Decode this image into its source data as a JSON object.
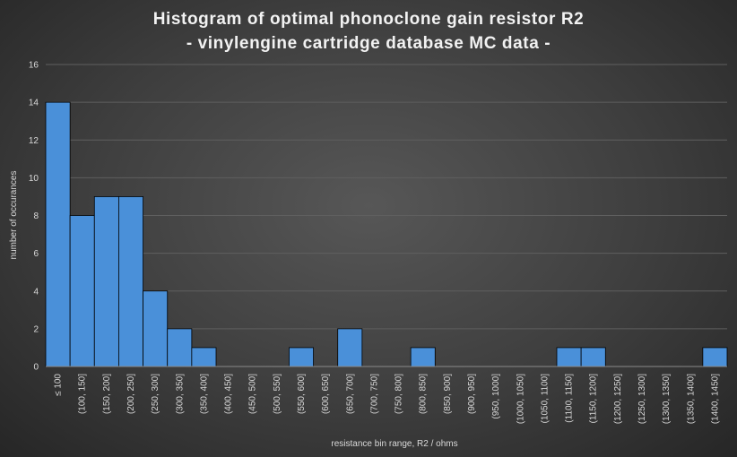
{
  "chart_data": {
    "type": "bar",
    "title": "Histogram of optimal phonoclone gain resistor R2",
    "subtitle": "- vinylengine cartridge database MC data -",
    "xlabel": "resistance bin range, R2 / ohms",
    "ylabel": "number of occurances",
    "ylim": [
      0,
      16
    ],
    "yticks": [
      0,
      2,
      4,
      6,
      8,
      10,
      12,
      14,
      16
    ],
    "grid": true,
    "bar_color": "#4a90d9",
    "categories": [
      "≤ 100",
      "(100, 150]",
      "(150, 200]",
      "(200, 250]",
      "(250, 300]",
      "(300, 350]",
      "(350, 400]",
      "(400, 450]",
      "(450, 500]",
      "(500, 550]",
      "(550, 600]",
      "(600, 650]",
      "(650, 700]",
      "(700, 750]",
      "(750, 800]",
      "(800, 850]",
      "(850, 900]",
      "(900, 950]",
      "(950, 1000]",
      "(1000, 1050]",
      "(1050, 1100]",
      "(1100, 1150]",
      "(1150, 1200]",
      "(1200, 1250]",
      "(1250, 1300]",
      "(1300, 1350]",
      "(1350, 1400]",
      "(1400, 1450]"
    ],
    "values": [
      14,
      8,
      9,
      9,
      4,
      2,
      1,
      0,
      0,
      0,
      1,
      0,
      2,
      0,
      0,
      1,
      0,
      0,
      0,
      0,
      0,
      1,
      1,
      0,
      0,
      0,
      0,
      1
    ]
  }
}
